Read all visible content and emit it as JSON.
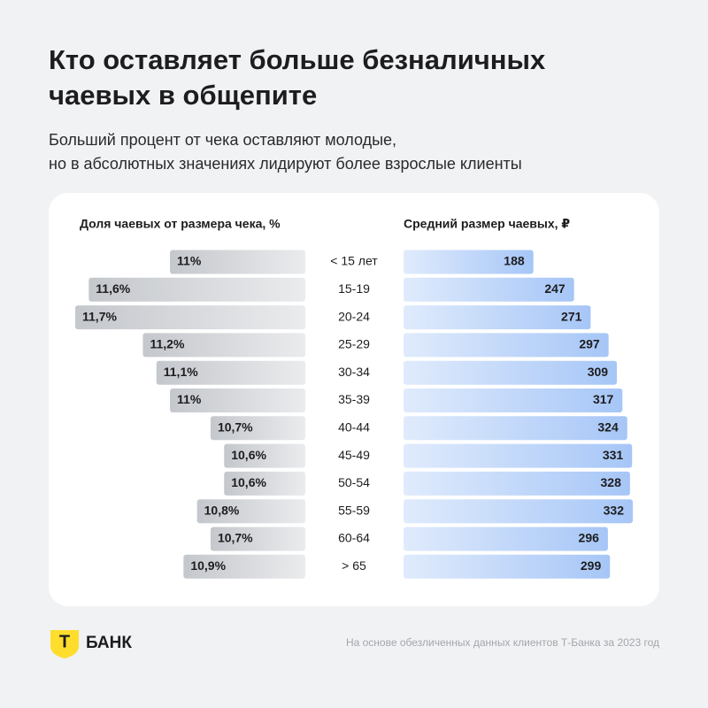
{
  "header": {
    "title_lines": [
      "Кто оставляет больше безналичных",
      "чаевых в общепите"
    ],
    "subtitle_lines": [
      "Больший процент от чека оставляют молодые,",
      "но в абсолютных значениях лидируют более взрослые клиенты"
    ]
  },
  "chart_data": {
    "type": "butterfly",
    "categories": [
      "< 15 лет",
      "15-19",
      "20-24",
      "25-29",
      "30-34",
      "35-39",
      "40-44",
      "45-49",
      "50-54",
      "55-59",
      "60-64",
      "> 65"
    ],
    "series": [
      {
        "name": "Доля чаевых от размера чека, %",
        "color": "#c4c7cc",
        "values": [
          11,
          11.6,
          11.7,
          11.2,
          11.1,
          11,
          10.7,
          10.6,
          10.6,
          10.8,
          10.7,
          10.9
        ],
        "value_labels": [
          "11%",
          "11,6%",
          "11,7%",
          "11,2%",
          "11,1%",
          "11%",
          "10,7%",
          "10,6%",
          "10,6%",
          "10,8%",
          "10,7%",
          "10,9%"
        ],
        "xlim": [
          10,
          11.7
        ]
      },
      {
        "name": "Средний размер чаевых, ₽",
        "color": "#a6c6f7",
        "values": [
          188,
          247,
          271,
          297,
          309,
          317,
          324,
          331,
          328,
          332,
          296,
          299
        ],
        "xlim": [
          0,
          332
        ]
      }
    ]
  },
  "footer": {
    "brand": "Т",
    "brand_name": "БАНК",
    "source": "На основе обезличенных данных клиентов Т-Банка за 2023 год"
  }
}
